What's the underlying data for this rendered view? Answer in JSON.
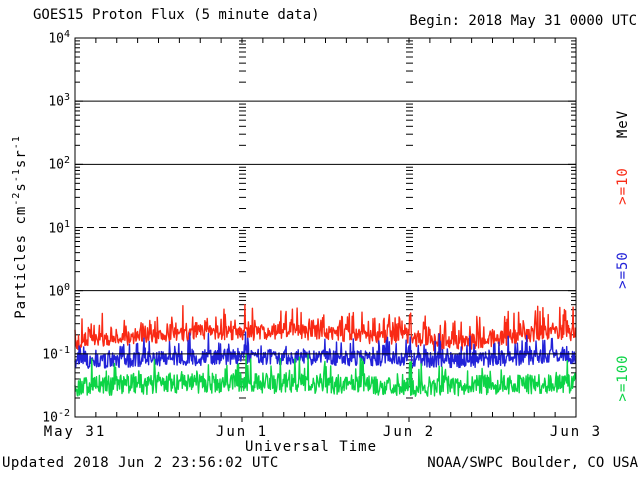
{
  "header": {
    "title": "GOES15 Proton Flux (5 minute data)",
    "begin_label": "Begin: 2018 May 31 0000 UTC"
  },
  "footer": {
    "updated": "Updated 2018 Jun  2 23:56:02 UTC",
    "source": "NOAA/SWPC Boulder, CO USA"
  },
  "colors": {
    "axis": "#000000",
    "ge10": "#f92a15",
    "ge50": "#2222d8",
    "ge100": "#0cd446"
  },
  "chart_data": {
    "type": "line",
    "title": "GOES15 Proton Flux (5 minute data)",
    "xlabel": "Universal Time",
    "ylabel_plain": "Particles cm-2 s-1 sr-1",
    "ylabel_parts": [
      {
        "text": "Particles cm"
      },
      {
        "sup": "-2"
      },
      {
        "text": "s"
      },
      {
        "sup": "-1"
      },
      {
        "text": "sr"
      },
      {
        "sup": "-1"
      }
    ],
    "x_start_label": "Begin: 2018 May 31 0000 UTC",
    "x_span_hours": 72,
    "x_major_ticks": [
      {
        "label": "May 31",
        "hour": 0
      },
      {
        "label": "Jun 1",
        "hour": 24
      },
      {
        "label": "Jun 2",
        "hour": 48
      },
      {
        "label": "Jun 3",
        "hour": 72
      }
    ],
    "x_minor_tick_hours": 3,
    "ylim": [
      0.01,
      10000
    ],
    "y_scale": "log",
    "y_decade_exponents": [
      4,
      3,
      2,
      1,
      0,
      -1,
      -2
    ],
    "hlines": [
      {
        "value": 1000,
        "style": "solid"
      },
      {
        "value": 100,
        "style": "solid"
      },
      {
        "value": 10,
        "style": "dashed"
      },
      {
        "value": 1,
        "style": "solid"
      },
      {
        "value": 0.1,
        "style": "solid"
      }
    ],
    "vertical_day_guides_hours": [
      24,
      48
    ],
    "right_axis_labels": [
      {
        "text": "MeV",
        "color": "#000000",
        "y": 124
      },
      {
        "text": ">=10",
        "color": "#f92a15",
        "y": 186
      },
      {
        "text": ">=50",
        "color": "#2222d8",
        "y": 270
      },
      {
        "text": ">=100",
        "color": "#0cd446",
        "y": 378
      }
    ],
    "cadence_minutes": 5,
    "points_per_series": 864,
    "series": [
      {
        "name": ">=10 MeV",
        "legend": ">=10",
        "color": "#f92a15",
        "seed": 7,
        "anchors_hours": [
          0,
          6,
          12,
          18,
          24,
          30,
          36,
          42,
          48,
          52,
          56,
          62,
          68,
          72
        ],
        "anchors_flux": [
          0.14,
          0.17,
          0.19,
          0.22,
          0.21,
          0.23,
          0.21,
          0.19,
          0.18,
          0.14,
          0.15,
          0.18,
          0.22,
          0.21
        ],
        "jitter_log": 0.12,
        "spike_prob": 0.25,
        "spike_amp_log": 0.36,
        "floor_flux": 0.108
      },
      {
        "name": ">=50 MeV",
        "legend": ">=50",
        "color": "#2222d8",
        "seed": 13,
        "anchors_hours": [
          0,
          8,
          16,
          24,
          32,
          40,
          48,
          54,
          60,
          66,
          72
        ],
        "anchors_flux": [
          0.075,
          0.08,
          0.085,
          0.09,
          0.088,
          0.085,
          0.082,
          0.078,
          0.082,
          0.09,
          0.092
        ],
        "jitter_log": 0.12,
        "spike_prob": 0.2,
        "spike_amp_log": 0.34,
        "floor_flux": 0.047
      },
      {
        "name": ">=100 MeV",
        "legend": ">=100",
        "color": "#0cd446",
        "seed": 29,
        "anchors_hours": [
          0,
          12,
          24,
          36,
          48,
          60,
          72
        ],
        "anchors_flux": [
          0.031,
          0.033,
          0.035,
          0.033,
          0.03,
          0.032,
          0.034
        ],
        "jitter_log": 0.16,
        "spike_prob": 0.18,
        "spike_amp_log": 0.33,
        "floor_flux": 0.02
      }
    ]
  }
}
